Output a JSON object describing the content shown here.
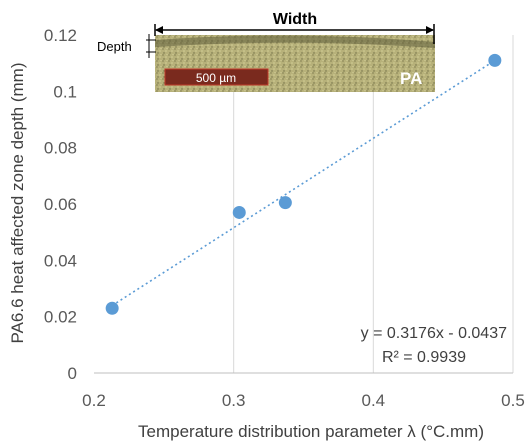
{
  "chart_data": {
    "type": "scatter",
    "title": "",
    "xlabel": "Temperature distribution parameter λ (°C.mm)",
    "ylabel": "PA6.6  heat affected zone depth (mm)",
    "xlim": [
      0.2,
      0.5
    ],
    "ylim": [
      0,
      0.12
    ],
    "x_ticks": [
      "0.2",
      "0.3",
      "0.4",
      "0.5"
    ],
    "y_ticks": [
      "0",
      "0.02",
      "0.04",
      "0.06",
      "0.08",
      "0.1",
      "0.12"
    ],
    "grid": "vertical",
    "series": [
      {
        "x": [
          0.213,
          0.304,
          0.337,
          0.487
        ],
        "y": [
          0.023,
          0.057,
          0.0605,
          0.111
        ],
        "color": "#5b9bd5"
      }
    ],
    "trendline": {
      "slope": 0.3176,
      "intercept": -0.0437,
      "x_range": [
        0.213,
        0.487
      ],
      "style": "dotted",
      "color": "#5b9bd5",
      "equation": "y = 0.3176x - 0.0437",
      "r_squared": "R² = 0.9939"
    },
    "inset": {
      "width_label": "Width",
      "depth_label": "Depth",
      "scale_label": "500 µm",
      "material_label": "PA"
    }
  }
}
